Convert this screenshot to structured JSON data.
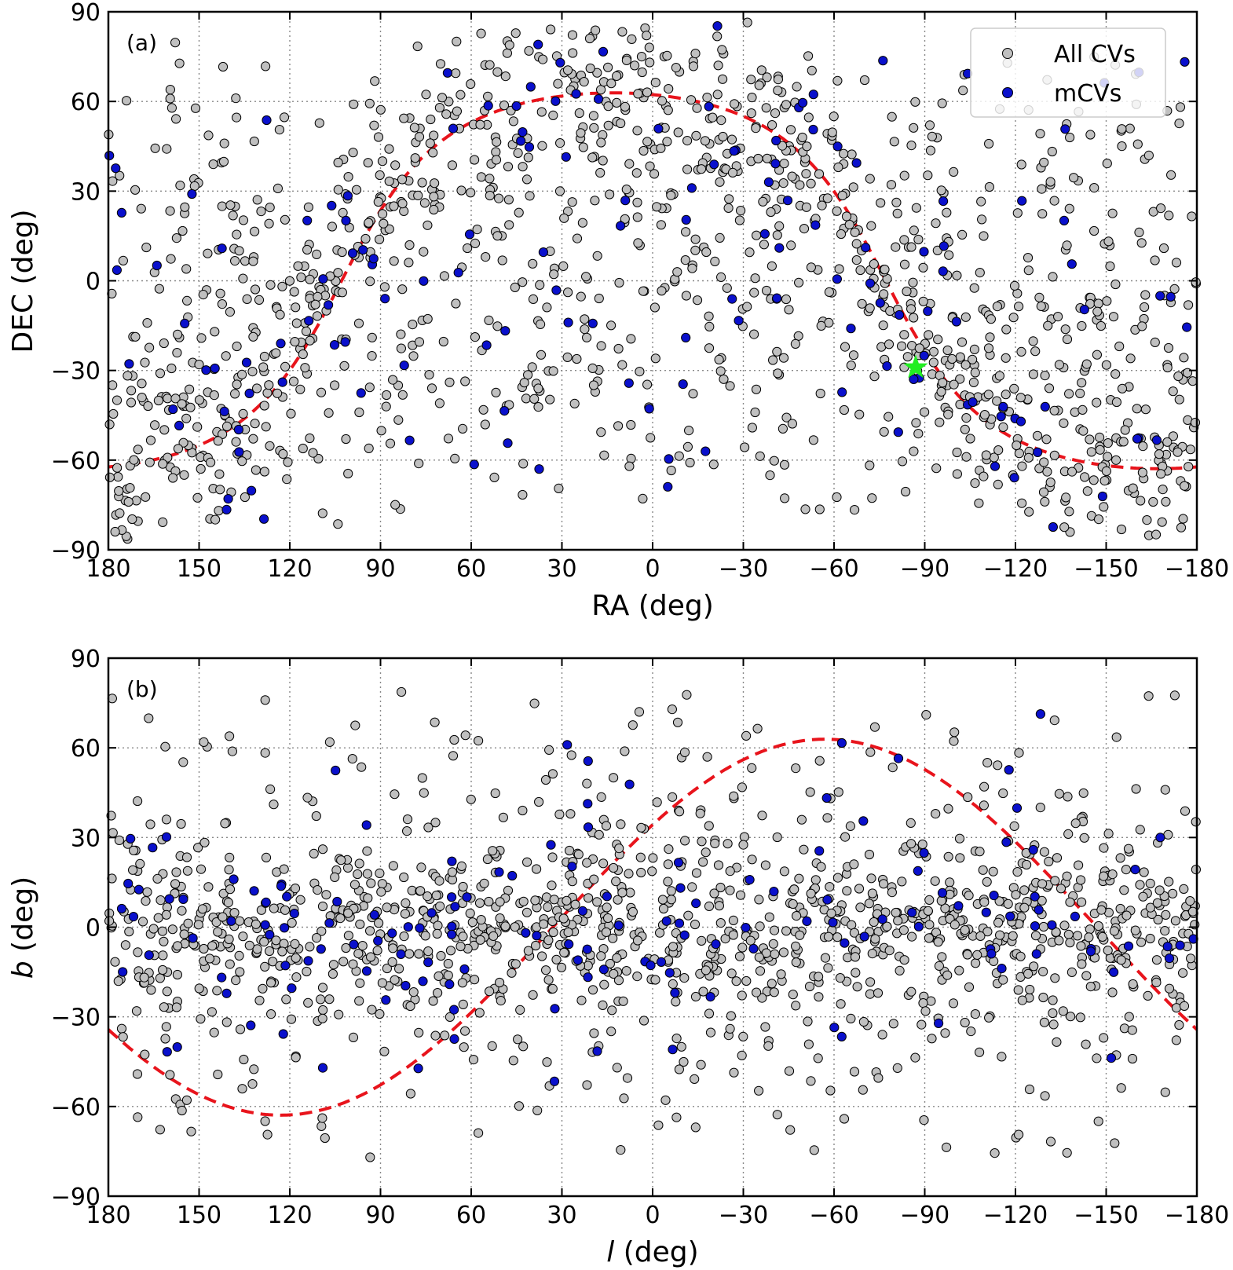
{
  "legend": {
    "all_label": "All CVs",
    "mcv_label": "mCVs"
  },
  "chart_data": [
    {
      "type": "scatter",
      "panel_label": "(a)",
      "xlabel": "RA (deg)",
      "ylabel": "DEC (deg)",
      "xlim": [
        180,
        -180
      ],
      "ylim": [
        -90,
        90
      ],
      "x_ticks": [
        180,
        150,
        120,
        90,
        60,
        30,
        0,
        -30,
        -60,
        -90,
        -120,
        -150,
        -180
      ],
      "y_ticks": [
        90,
        60,
        30,
        0,
        -30,
        -60,
        -90
      ],
      "x_tick_labels": [
        "180",
        "150",
        "120",
        "90",
        "60",
        "30",
        "0",
        "−30",
        "−60",
        "−90",
        "−120",
        "−150",
        "−180"
      ],
      "y_tick_labels": [
        "90",
        "60",
        "30",
        "0",
        "−30",
        "−60",
        "−90"
      ],
      "grid": true,
      "curve": {
        "name": "Galactic plane",
        "color": "#e8141c",
        "style": "dashed",
        "amplitude": 62.9,
        "peak_x": 12,
        "shape": "galactic_plane_eq"
      },
      "marker": {
        "name": "target",
        "x": -87,
        "y": -29,
        "color": "#22ee22",
        "shape": "star"
      },
      "point_colors": {
        "all": "#c0c0c0",
        "mcv": "#0a10cc"
      },
      "series": [
        {
          "name": "All CVs",
          "n": 1300,
          "seed": 11
        },
        {
          "name": "mCVs",
          "n": 150,
          "seed": 29
        }
      ]
    },
    {
      "type": "scatter",
      "panel_label": "(b)",
      "xlabel_italic": "l",
      "xlabel_rest": " (deg)",
      "ylabel_italic": "b",
      "ylabel_rest": " (deg)",
      "xlim": [
        180,
        -180
      ],
      "ylim": [
        -90,
        90
      ],
      "x_ticks": [
        180,
        150,
        120,
        90,
        60,
        30,
        0,
        -30,
        -60,
        -90,
        -120,
        -150,
        -180
      ],
      "y_ticks": [
        90,
        60,
        30,
        0,
        -30,
        -60,
        -90
      ],
      "x_tick_labels": [
        "180",
        "150",
        "120",
        "90",
        "60",
        "30",
        "0",
        "−30",
        "−60",
        "−90",
        "−120",
        "−150",
        "−180"
      ],
      "y_tick_labels": [
        "90",
        "60",
        "30",
        "0",
        "−30",
        "−60",
        "−90"
      ],
      "grid": true,
      "curve": {
        "name": "Celestial equator",
        "color": "#e8141c",
        "style": "dashed",
        "amplitude": 62.9,
        "peak_x": -57,
        "shape": "sine"
      },
      "point_colors": {
        "all": "#c0c0c0",
        "mcv": "#0a10cc"
      },
      "series": [
        {
          "name": "All CVs",
          "n": 1300,
          "seed": 47
        },
        {
          "name": "mCVs",
          "n": 150,
          "seed": 83
        }
      ]
    }
  ]
}
